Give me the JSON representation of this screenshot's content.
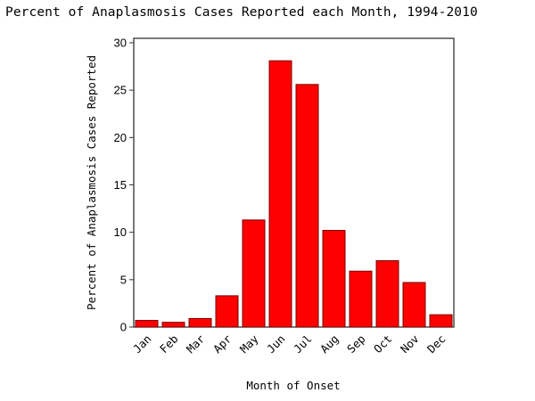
{
  "chart_data": {
    "type": "bar",
    "title": "Percent of Anaplasmosis Cases Reported each Month, 1994-2010",
    "xlabel": "Month of Onset",
    "ylabel": "Percent of Anaplasmosis Cases Reported",
    "categories": [
      "Jan",
      "Feb",
      "Mar",
      "Apr",
      "May",
      "Jun",
      "Jul",
      "Aug",
      "Sep",
      "Oct",
      "Nov",
      "Dec"
    ],
    "values": [
      0.7,
      0.5,
      0.9,
      3.3,
      11.3,
      28.1,
      25.6,
      10.2,
      5.9,
      7.0,
      4.7,
      1.3
    ],
    "ylim": [
      0,
      30
    ],
    "yticks": [
      0,
      5,
      10,
      15,
      20,
      25,
      30
    ],
    "grid": false,
    "legend": null,
    "bar_color": "#ff0000",
    "bar_edge_color": "#7a0000"
  }
}
